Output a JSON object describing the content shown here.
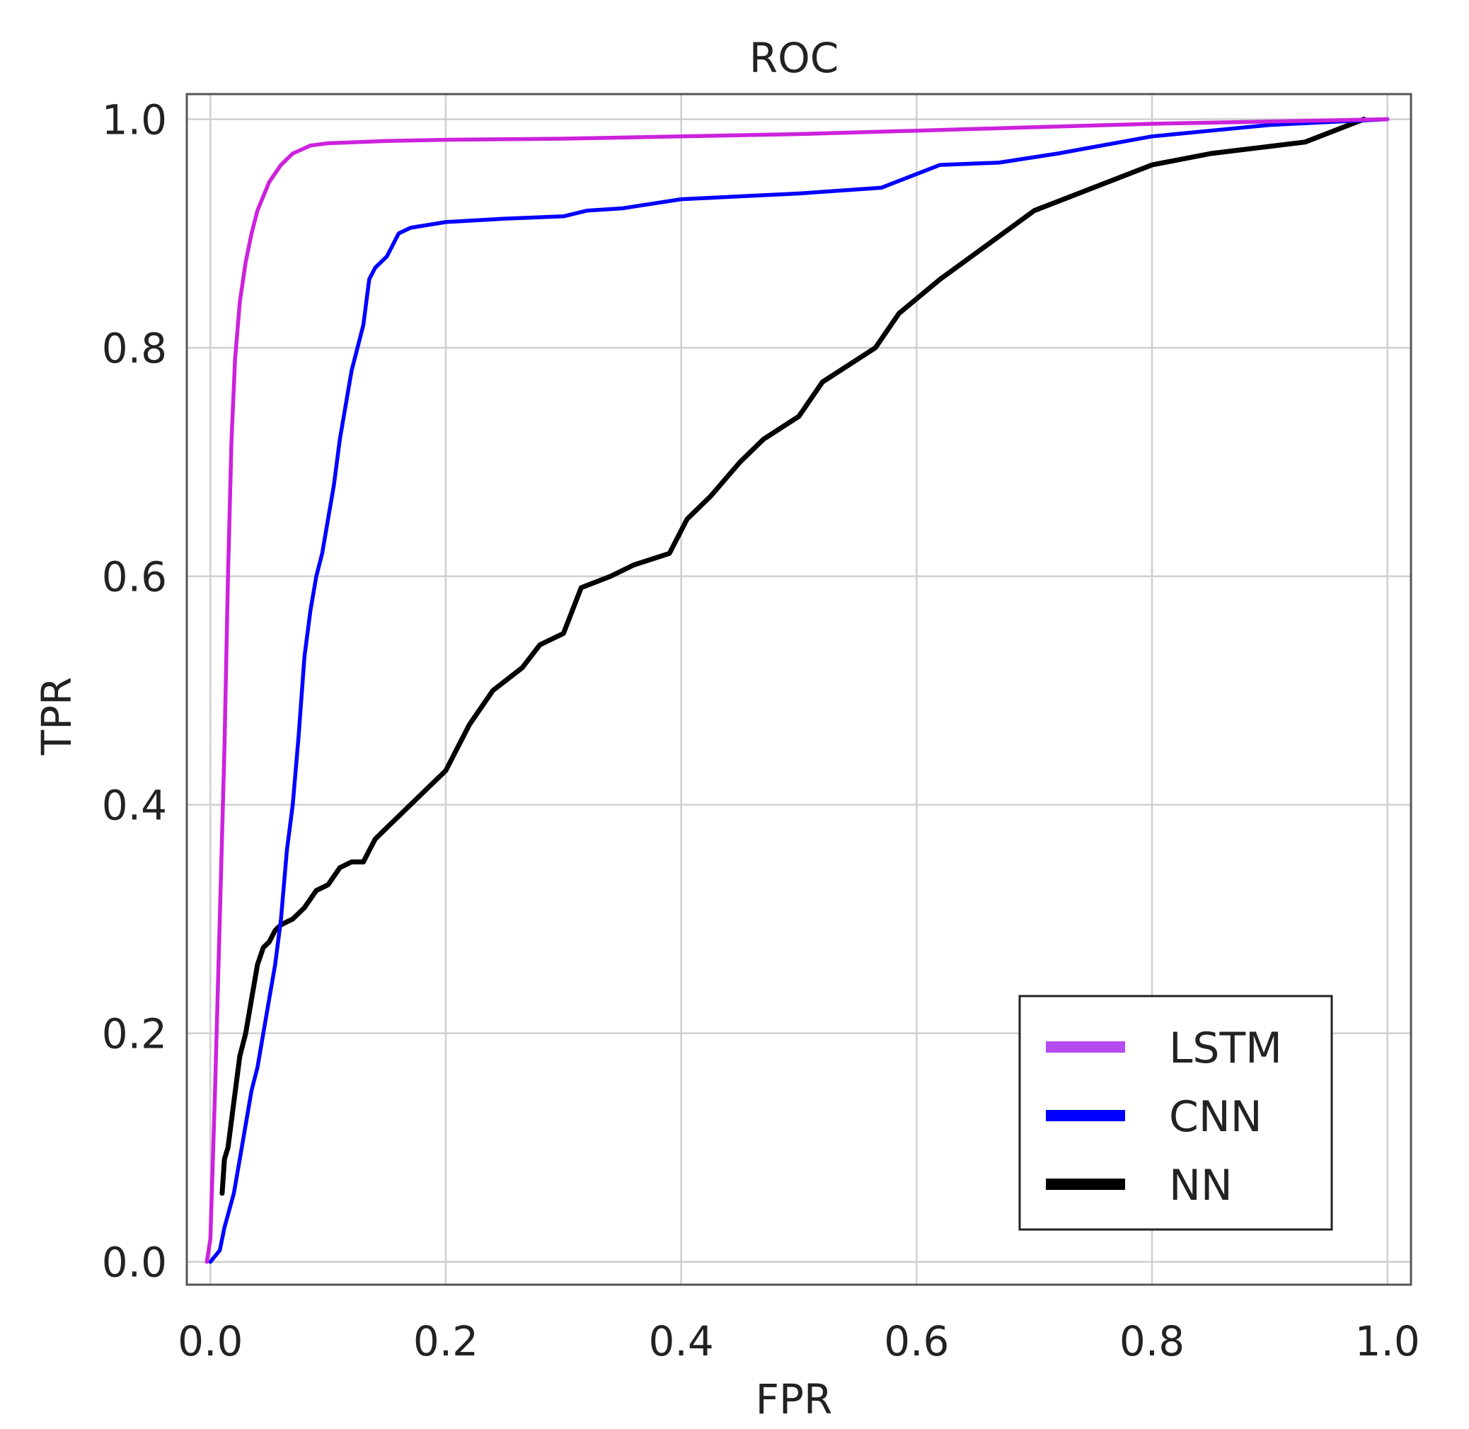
{
  "chart_data": {
    "type": "line",
    "title": "ROC",
    "xlabel": "FPR",
    "ylabel": "TPR",
    "xlim": [
      -0.02,
      1.02
    ],
    "ylim": [
      -0.02,
      1.022
    ],
    "xticks": [
      0.0,
      0.2,
      0.4,
      0.6,
      0.8,
      1.0
    ],
    "yticks": [
      0.0,
      0.2,
      0.4,
      0.6,
      0.8,
      1.0
    ],
    "xtick_labels": [
      "0.0",
      "0.2",
      "0.4",
      "0.6",
      "0.8",
      "1.0"
    ],
    "ytick_labels": [
      "0.0",
      "0.2",
      "0.4",
      "0.6",
      "0.8",
      "1.0"
    ],
    "grid": true,
    "legend_position": "bottom-right",
    "series": [
      {
        "name": "LSTM",
        "color": "#cc22dd",
        "legend_color": "#b44cf0",
        "x": [
          -0.003,
          0.0,
          0.004,
          0.008,
          0.012,
          0.015,
          0.018,
          0.021,
          0.025,
          0.03,
          0.035,
          0.04,
          0.05,
          0.06,
          0.07,
          0.085,
          0.1,
          0.15,
          0.2,
          0.3,
          0.4,
          0.5,
          0.6,
          0.7,
          0.8,
          0.9,
          1.0
        ],
        "y": [
          0.0,
          0.02,
          0.15,
          0.3,
          0.45,
          0.6,
          0.72,
          0.79,
          0.84,
          0.875,
          0.9,
          0.92,
          0.945,
          0.96,
          0.97,
          0.977,
          0.979,
          0.981,
          0.982,
          0.983,
          0.985,
          0.987,
          0.99,
          0.993,
          0.996,
          0.998,
          1.0
        ]
      },
      {
        "name": "CNN",
        "color": "#0000ff",
        "legend_color": "#0000ff",
        "x": [
          0.0,
          0.008,
          0.012,
          0.02,
          0.025,
          0.03,
          0.035,
          0.04,
          0.045,
          0.05,
          0.055,
          0.06,
          0.065,
          0.07,
          0.075,
          0.08,
          0.085,
          0.09,
          0.095,
          0.1,
          0.105,
          0.11,
          0.115,
          0.12,
          0.125,
          0.13,
          0.135,
          0.14,
          0.15,
          0.16,
          0.17,
          0.2,
          0.25,
          0.3,
          0.32,
          0.35,
          0.4,
          0.5,
          0.57,
          0.62,
          0.67,
          0.72,
          0.8,
          0.85,
          0.9,
          1.0
        ],
        "y": [
          0.0,
          0.01,
          0.03,
          0.06,
          0.09,
          0.12,
          0.15,
          0.17,
          0.2,
          0.23,
          0.26,
          0.3,
          0.36,
          0.4,
          0.46,
          0.53,
          0.57,
          0.6,
          0.62,
          0.65,
          0.68,
          0.72,
          0.75,
          0.78,
          0.8,
          0.82,
          0.86,
          0.87,
          0.88,
          0.9,
          0.905,
          0.91,
          0.913,
          0.915,
          0.92,
          0.922,
          0.93,
          0.935,
          0.94,
          0.96,
          0.962,
          0.97,
          0.985,
          0.99,
          0.995,
          1.0
        ]
      },
      {
        "name": "NN",
        "color": "#000000",
        "legend_color": "#000000",
        "x": [
          0.01,
          0.012,
          0.015,
          0.02,
          0.025,
          0.03,
          0.035,
          0.04,
          0.045,
          0.05,
          0.055,
          0.06,
          0.07,
          0.08,
          0.09,
          0.1,
          0.11,
          0.12,
          0.13,
          0.135,
          0.14,
          0.15,
          0.165,
          0.18,
          0.2,
          0.22,
          0.24,
          0.265,
          0.28,
          0.3,
          0.315,
          0.34,
          0.36,
          0.39,
          0.405,
          0.425,
          0.45,
          0.47,
          0.5,
          0.52,
          0.565,
          0.585,
          0.62,
          0.66,
          0.7,
          0.75,
          0.8,
          0.85,
          0.93,
          0.98
        ],
        "y": [
          0.06,
          0.09,
          0.1,
          0.14,
          0.18,
          0.2,
          0.23,
          0.26,
          0.275,
          0.28,
          0.29,
          0.295,
          0.3,
          0.31,
          0.325,
          0.33,
          0.345,
          0.35,
          0.35,
          0.36,
          0.37,
          0.38,
          0.395,
          0.41,
          0.43,
          0.47,
          0.5,
          0.52,
          0.54,
          0.55,
          0.59,
          0.6,
          0.61,
          0.62,
          0.65,
          0.67,
          0.7,
          0.72,
          0.74,
          0.77,
          0.8,
          0.83,
          0.86,
          0.89,
          0.92,
          0.94,
          0.96,
          0.97,
          0.98,
          1.0
        ]
      }
    ]
  }
}
